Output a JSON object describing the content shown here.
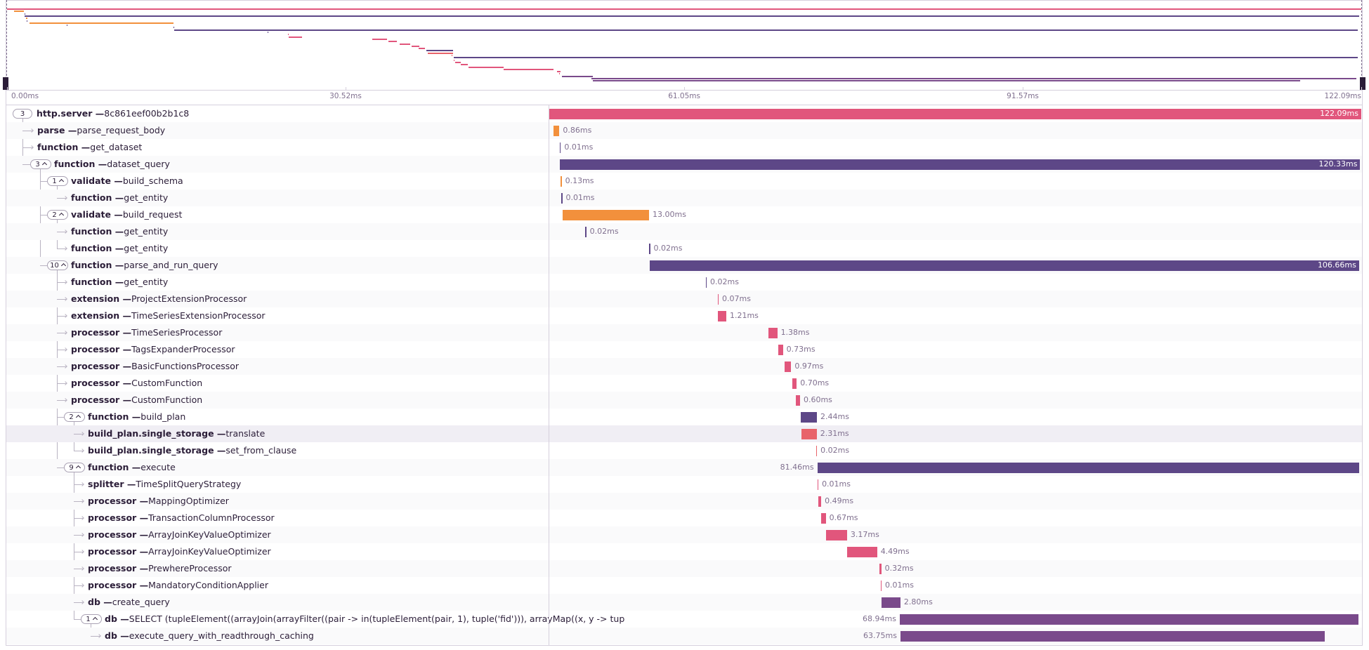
{
  "axis": {
    "xlim": [
      0,
      122.09
    ],
    "xticks": [
      {
        "value": 0,
        "label": "0.00ms"
      },
      {
        "value": 30.52,
        "label": "30.52ms"
      },
      {
        "value": 61.05,
        "label": "61.05ms"
      },
      {
        "value": 91.57,
        "label": "91.57ms"
      },
      {
        "value": 122.09,
        "label": "122.09ms"
      }
    ]
  },
  "spans": [
    {
      "op": "http.server",
      "description": "8c861eef00b2b1c8",
      "start": 0,
      "duration": 122.09,
      "duration_label": "122.09ms",
      "color": "#e1567c",
      "child_count": 3,
      "children": [
        {
          "op": "parse",
          "description": "parse_request_body",
          "start": 0.66,
          "duration": 0.86,
          "duration_label": "0.86ms",
          "color": "#f2903c"
        },
        {
          "op": "function",
          "description": "get_dataset",
          "start": 1.57,
          "duration": 0.01,
          "duration_label": "0.01ms",
          "color": "#5d4787"
        },
        {
          "op": "function",
          "description": "dataset_query",
          "start": 1.6,
          "duration": 120.33,
          "duration_label": "120.33ms",
          "color": "#5d4787",
          "child_count": 3,
          "children": [
            {
              "op": "validate",
              "description": "build_schema",
              "start": 1.7,
              "duration": 0.13,
              "duration_label": "0.13ms",
              "color": "#f2903c",
              "child_count": 1,
              "children": [
                {
                  "op": "function",
                  "description": "get_entity",
                  "start": 1.8,
                  "duration": 0.01,
                  "duration_label": "0.01ms",
                  "color": "#5d4787"
                }
              ]
            },
            {
              "op": "validate",
              "description": "build_request",
              "start": 2.0,
              "duration": 13.0,
              "duration_label": "13.00ms",
              "color": "#f2903c",
              "child_count": 2,
              "children": [
                {
                  "op": "function",
                  "description": "get_entity",
                  "start": 5.4,
                  "duration": 0.02,
                  "duration_label": "0.02ms",
                  "color": "#5d4787"
                },
                {
                  "op": "function",
                  "description": "get_entity",
                  "start": 15.0,
                  "duration": 0.02,
                  "duration_label": "0.02ms",
                  "color": "#5d4787"
                }
              ]
            },
            {
              "op": "function",
              "description": "parse_and_run_query",
              "start": 15.1,
              "duration": 106.66,
              "duration_label": "106.66ms",
              "color": "#5d4787",
              "child_count": 10,
              "children": [
                {
                  "op": "function",
                  "description": "get_entity",
                  "start": 23.5,
                  "duration": 0.02,
                  "duration_label": "0.02ms",
                  "color": "#5d4787"
                },
                {
                  "op": "extension",
                  "description": "ProjectExtensionProcessor",
                  "start": 25.3,
                  "duration": 0.07,
                  "duration_label": "0.07ms",
                  "color": "#e1567c"
                },
                {
                  "op": "extension",
                  "description": "TimeSeriesExtensionProcessor",
                  "start": 25.4,
                  "duration": 1.21,
                  "duration_label": "1.21ms",
                  "color": "#e1567c"
                },
                {
                  "op": "processor",
                  "description": "TimeSeriesProcessor",
                  "start": 32.9,
                  "duration": 1.38,
                  "duration_label": "1.38ms",
                  "color": "#e1567c"
                },
                {
                  "op": "processor",
                  "description": "TagsExpanderProcessor",
                  "start": 34.4,
                  "duration": 0.73,
                  "duration_label": "0.73ms",
                  "color": "#e1567c"
                },
                {
                  "op": "processor",
                  "description": "BasicFunctionsProcessor",
                  "start": 35.4,
                  "duration": 0.97,
                  "duration_label": "0.97ms",
                  "color": "#e1567c"
                },
                {
                  "op": "processor",
                  "description": "CustomFunction",
                  "start": 36.5,
                  "duration": 0.7,
                  "duration_label": "0.70ms",
                  "color": "#e1567c"
                },
                {
                  "op": "processor",
                  "description": "CustomFunction",
                  "start": 37.1,
                  "duration": 0.6,
                  "duration_label": "0.60ms",
                  "color": "#e1567c"
                },
                {
                  "op": "function",
                  "description": "build_plan",
                  "start": 37.8,
                  "duration": 2.44,
                  "duration_label": "2.44ms",
                  "color": "#5d4787",
                  "child_count": 2,
                  "children": [
                    {
                      "op": "build_plan.single_storage",
                      "description": "translate",
                      "start": 37.9,
                      "duration": 2.31,
                      "duration_label": "2.31ms",
                      "color": "#e8636a",
                      "selected": true
                    },
                    {
                      "op": "build_plan.single_storage",
                      "description": "set_from_clause",
                      "start": 40.1,
                      "duration": 0.02,
                      "duration_label": "0.02ms",
                      "color": "#e8636a"
                    }
                  ]
                },
                {
                  "op": "function",
                  "description": "execute",
                  "start": 40.3,
                  "duration": 81.46,
                  "duration_label": "81.46ms",
                  "color": "#5d4787",
                  "child_count": 9,
                  "children": [
                    {
                      "op": "splitter",
                      "description": "TimeSplitQueryStrategy",
                      "start": 40.3,
                      "duration": 0.01,
                      "duration_label": "0.01ms",
                      "color": "#e1567c"
                    },
                    {
                      "op": "processor",
                      "description": "MappingOptimizer",
                      "start": 40.4,
                      "duration": 0.49,
                      "duration_label": "0.49ms",
                      "color": "#e1567c"
                    },
                    {
                      "op": "processor",
                      "description": "TransactionColumnProcessor",
                      "start": 40.9,
                      "duration": 0.67,
                      "duration_label": "0.67ms",
                      "color": "#e1567c"
                    },
                    {
                      "op": "processor",
                      "description": "ArrayJoinKeyValueOptimizer",
                      "start": 41.6,
                      "duration": 3.17,
                      "duration_label": "3.17ms",
                      "color": "#e1567c"
                    },
                    {
                      "op": "processor",
                      "description": "ArrayJoinKeyValueOptimizer",
                      "start": 44.8,
                      "duration": 4.49,
                      "duration_label": "4.49ms",
                      "color": "#e1567c"
                    },
                    {
                      "op": "processor",
                      "description": "PrewhereProcessor",
                      "start": 49.6,
                      "duration": 0.32,
                      "duration_label": "0.32ms",
                      "color": "#e1567c"
                    },
                    {
                      "op": "processor",
                      "description": "MandatoryConditionApplier",
                      "start": 49.8,
                      "duration": 0.01,
                      "duration_label": "0.01ms",
                      "color": "#e1567c"
                    },
                    {
                      "op": "db",
                      "description": "create_query",
                      "start": 50.0,
                      "duration": 2.8,
                      "duration_label": "2.80ms",
                      "color": "#7a4a8b"
                    },
                    {
                      "op": "db",
                      "description": "SELECT (tupleElement((arrayJoin(arrayFilter((pair -> in(tupleElement(pair, 1), tuple('fid'))), arrayMap((x, y -> tup",
                      "start": 52.7,
                      "duration": 68.94,
                      "duration_label": "68.94ms",
                      "color": "#7a4a8b",
                      "child_count": 1,
                      "children": [
                        {
                          "op": "db",
                          "description": "execute_query_with_readthrough_caching",
                          "start": 52.8,
                          "duration": 63.75,
                          "duration_label": "63.75ms",
                          "color": "#7a4a8b"
                        }
                      ]
                    }
                  ]
                }
              ]
            }
          ]
        }
      ]
    }
  ]
}
